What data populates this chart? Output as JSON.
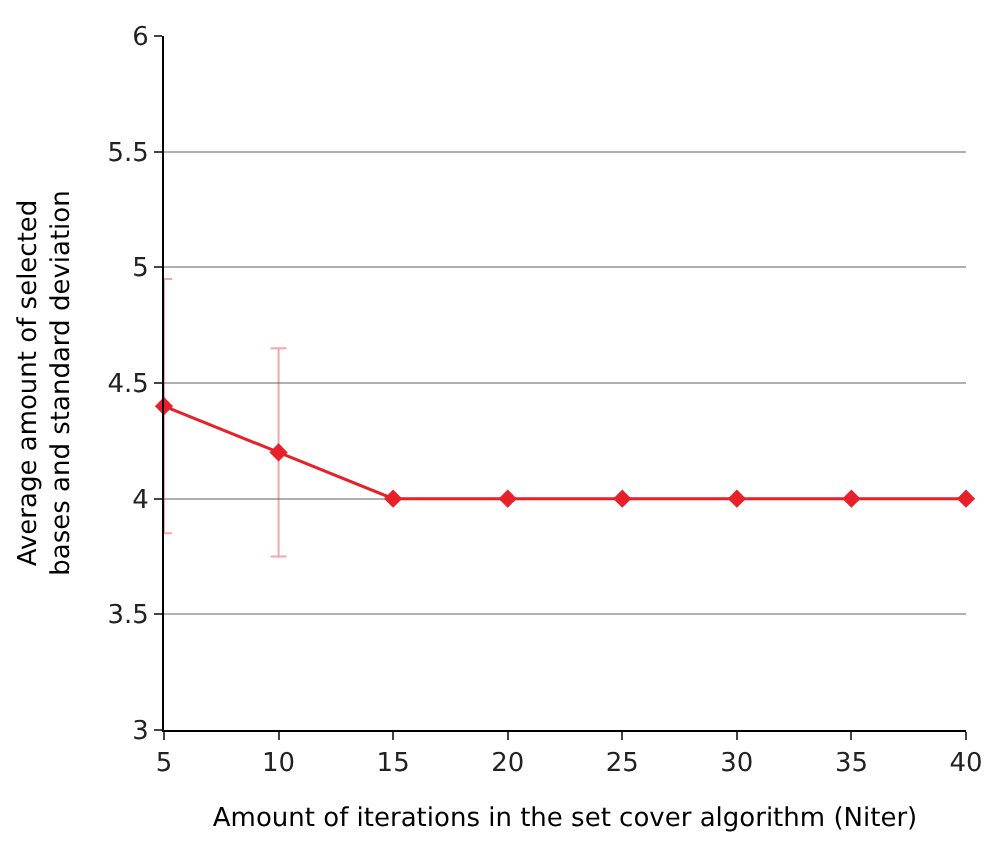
{
  "chart_data": {
    "type": "line",
    "xlabel": "Amount of iterations in the set cover algorithm (Niter)",
    "ylabel": "Average amount of selected\nbases and standard deviation",
    "x": [
      5,
      10,
      15,
      20,
      25,
      30,
      35,
      40
    ],
    "series": [
      {
        "color": "#e8202a",
        "values": [
          4.4,
          4.2,
          4,
          4,
          4,
          4,
          4,
          4
        ],
        "errors": [
          0.55,
          0.45,
          null,
          null,
          null,
          null,
          null,
          null
        ]
      }
    ],
    "xlim": [
      5,
      40
    ],
    "xticks": [
      5,
      10,
      15,
      20,
      25,
      30,
      35,
      40
    ],
    "ylim": [
      3,
      6
    ],
    "yticks": [
      3,
      3.5,
      4,
      4.5,
      5,
      5.5,
      6
    ],
    "grid": "y",
    "marker": "diamond",
    "line_style": "solid"
  }
}
